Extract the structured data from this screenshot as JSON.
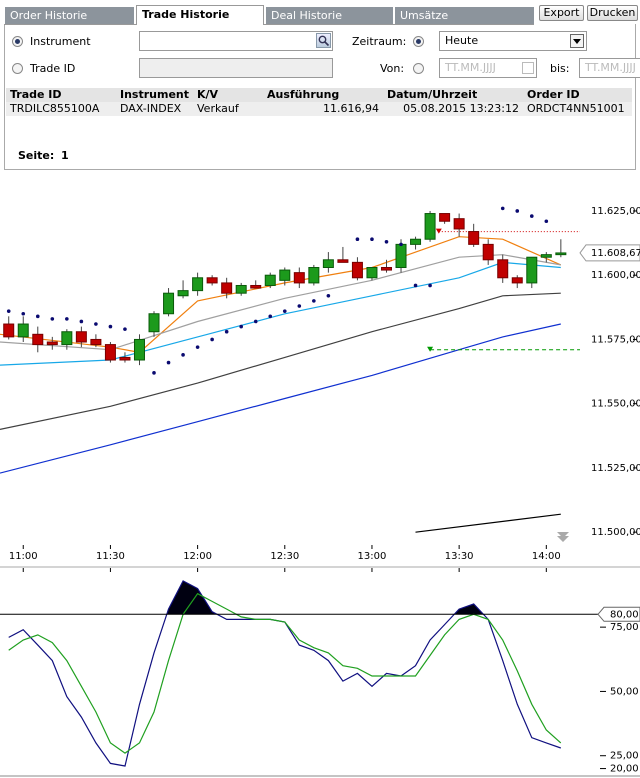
{
  "tabs": [
    "Order Historie",
    "Trade Historie",
    "Deal Historie",
    "Umsätze"
  ],
  "active_tab": 1,
  "buttons": [
    "Export",
    "Drucken"
  ],
  "form": {
    "instrument_label": "Instrument",
    "trade_id_label": "Trade ID",
    "zeitraum_label": "Zeitraum:",
    "zeitraum_value": "Heute",
    "von_label": "Von:",
    "von_placeholder": "TT.MM.JJJJ",
    "bis_label": "bis:",
    "bis_placeholder": "TT.MM.JJJJ"
  },
  "table": {
    "columns": [
      "Trade ID",
      "Instrument",
      "K/V",
      "Ausführung",
      "Datum/Uhrzeit",
      "Order ID"
    ],
    "rows": [
      [
        "TRDILC855100A",
        "DAX-INDEX",
        "Verkauf",
        "11.616,94",
        "05.08.2015 13:23:12",
        "ORDCT4NN51001"
      ]
    ]
  },
  "pagination": {
    "label": "Seite:",
    "page": 1
  },
  "chart_data": [
    {
      "type": "candlestick",
      "x": [
        "10:55",
        "11:00",
        "11:05",
        "11:10",
        "11:15",
        "11:20",
        "11:25",
        "11:30",
        "11:35",
        "11:40",
        "11:45",
        "11:50",
        "11:55",
        "12:00",
        "12:05",
        "12:10",
        "12:15",
        "12:20",
        "12:25",
        "12:30",
        "12:35",
        "12:40",
        "12:45",
        "12:50",
        "12:55",
        "13:00",
        "13:05",
        "13:10",
        "13:15",
        "13:20",
        "13:25",
        "13:30",
        "13:35",
        "13:40",
        "13:45",
        "13:50",
        "13:55",
        "14:00",
        "14:05"
      ],
      "open": [
        11581,
        11576,
        11577,
        11574,
        11573,
        11578,
        11575,
        11573,
        11568,
        11567,
        11578,
        11585,
        11592,
        11594,
        11599,
        11597,
        11593,
        11596,
        11596,
        11598,
        11601,
        11597,
        11603,
        11606,
        11605,
        11599,
        11603,
        11603,
        11612,
        11614,
        11624,
        11622,
        11617,
        11612,
        11606,
        11599,
        11597,
        11607,
        11608
      ],
      "high": [
        11584,
        11584,
        11580,
        11576,
        11579,
        11580,
        11577,
        11574,
        11570,
        11577,
        11586,
        11595,
        11598,
        11601,
        11600,
        11599,
        11597,
        11598,
        11601,
        11603,
        11603,
        11604,
        11609,
        11611,
        11607,
        11603,
        11606,
        11614,
        11615,
        11625,
        11624,
        11624,
        11620,
        11614,
        11608,
        11600,
        11607,
        11609,
        11614
      ],
      "low": [
        11575,
        11574,
        11570,
        11571,
        11571,
        11572,
        11572,
        11566,
        11566,
        11565,
        11576,
        11584,
        11591,
        11592,
        11596,
        11591,
        11592,
        11595,
        11595,
        11596,
        11595,
        11596,
        11601,
        11605,
        11598,
        11598,
        11601,
        11601,
        11610,
        11613,
        11620,
        11615,
        11611,
        11604,
        11597,
        11595,
        11595,
        11605,
        11607
      ],
      "close": [
        11576,
        11581,
        11573,
        11573,
        11578,
        11574,
        11573,
        11567,
        11567,
        11575,
        11585,
        11593,
        11594,
        11599,
        11597,
        11593,
        11596,
        11595,
        11600,
        11602,
        11597,
        11603,
        11606,
        11605,
        11599,
        11603,
        11602,
        11612,
        11614,
        11624,
        11621,
        11618,
        11612,
        11606,
        11599,
        11597,
        11607,
        11608,
        11608.67
      ],
      "up_color": "#1c9a1c",
      "down_color": "#c00000",
      "xlim": [
        "10:52",
        "14:14"
      ],
      "xticks": [
        "11:00",
        "11:30",
        "12:00",
        "12:30",
        "13:00",
        "13:30",
        "14:00"
      ],
      "ylim": [
        11495,
        11639
      ],
      "yticks": [
        {
          "value": 11500,
          "label": "11.500,00"
        },
        {
          "value": 11525,
          "label": "11.525,00"
        },
        {
          "value": 11550,
          "label": "11.550,00"
        },
        {
          "value": 11575,
          "label": "11.575,00"
        },
        {
          "value": 11600,
          "label": "11.600,00"
        },
        {
          "value": 11625,
          "label": "11.625,00"
        }
      ],
      "last": {
        "value": 11608.67,
        "label": "11.608,67"
      },
      "overlays": [
        {
          "color": "#f08010",
          "x": [
            "10:52",
            "11:30",
            "11:40",
            "12:00",
            "12:30",
            "13:00",
            "13:30",
            "13:45",
            "14:05"
          ],
          "values": [
            11577,
            11572,
            11570,
            11590,
            11597,
            11603,
            11615,
            11614,
            11604
          ]
        },
        {
          "color": "#a0a0a0",
          "x": [
            "10:52",
            "11:30",
            "12:00",
            "12:30",
            "13:00",
            "13:30",
            "13:45",
            "14:05"
          ],
          "values": [
            11574,
            11571,
            11582,
            11591,
            11598,
            11607,
            11608,
            11604
          ]
        },
        {
          "color": "#18a8e8",
          "x": [
            "10:52",
            "11:30",
            "12:00",
            "12:30",
            "13:00",
            "13:30",
            "13:45",
            "14:05"
          ],
          "values": [
            11565,
            11567,
            11576,
            11585,
            11592,
            11599,
            11605,
            11603
          ]
        },
        {
          "color": "#404040",
          "x": [
            "10:52",
            "11:30",
            "12:00",
            "12:30",
            "13:00",
            "13:30",
            "13:45",
            "14:05"
          ],
          "values": [
            11540,
            11549,
            11558,
            11568,
            11578,
            11587,
            11592,
            11593
          ]
        },
        {
          "color": "#1030d0",
          "x": [
            "10:52",
            "11:30",
            "12:00",
            "12:30",
            "13:00",
            "13:30",
            "13:45",
            "14:05"
          ],
          "values": [
            11523,
            11534,
            11543,
            11552,
            11561,
            11571,
            11576,
            11581
          ]
        },
        {
          "color": "#000000",
          "x": [
            "13:15",
            "14:05"
          ],
          "values": [
            11500,
            11507
          ]
        }
      ],
      "dots": {
        "color": "#0a0a70",
        "x": [
          "10:55",
          "11:00",
          "11:05",
          "11:10",
          "11:15",
          "11:20",
          "11:25",
          "11:30",
          "11:35",
          "11:45",
          "11:50",
          "11:55",
          "12:00",
          "12:05",
          "12:10",
          "12:15",
          "12:20",
          "12:25",
          "12:30",
          "12:35",
          "12:40",
          "12:45",
          "12:55",
          "13:00",
          "13:05",
          "13:10",
          "13:15",
          "13:20",
          "13:45",
          "13:50",
          "13:55",
          "14:00"
        ],
        "values": [
          11586,
          11585,
          11584,
          11583,
          11583,
          11582,
          11581,
          11580,
          11579,
          11562,
          11566,
          11569,
          11572,
          11575,
          11578,
          11580,
          11582,
          11584,
          11586,
          11588,
          11590,
          11592,
          11614,
          11614,
          11613,
          11612,
          11596,
          11596,
          11626,
          11625,
          11623,
          11621
        ]
      },
      "levels": [
        {
          "x": "13:23",
          "value": 11616.94,
          "color": "#d00000"
        },
        {
          "x": "13:20",
          "value": 11571,
          "color": "#009900"
        }
      ]
    },
    {
      "type": "line",
      "x": [
        "10:55",
        "11:00",
        "11:05",
        "11:10",
        "11:15",
        "11:20",
        "11:25",
        "11:30",
        "11:35",
        "11:40",
        "11:45",
        "11:50",
        "11:55",
        "12:00",
        "12:05",
        "12:10",
        "12:15",
        "12:20",
        "12:25",
        "12:30",
        "12:35",
        "12:40",
        "12:45",
        "12:50",
        "12:55",
        "13:00",
        "13:05",
        "13:10",
        "13:15",
        "13:20",
        "13:25",
        "13:30",
        "13:35",
        "13:40",
        "13:45",
        "13:50",
        "13:55",
        "14:00",
        "14:05"
      ],
      "series": [
        {
          "color": "#101080",
          "values": [
            71,
            74,
            68,
            62,
            48,
            40,
            30,
            22,
            21,
            45,
            65,
            82,
            93,
            90,
            81,
            78,
            78,
            78,
            78,
            77,
            68,
            66,
            62,
            54,
            57,
            52,
            57,
            56,
            60,
            70,
            76,
            82,
            84,
            78,
            62,
            45,
            32,
            30,
            28
          ]
        },
        {
          "color": "#20a020",
          "values": [
            66,
            70,
            72,
            69,
            62,
            52,
            42,
            30,
            26,
            30,
            42,
            62,
            80,
            88,
            85,
            82,
            79,
            78,
            78,
            77,
            70,
            67,
            65,
            60,
            59,
            56,
            56,
            56,
            56,
            64,
            72,
            78,
            80,
            78,
            70,
            58,
            45,
            35,
            30
          ]
        }
      ],
      "xlim": [
        "10:52",
        "14:14"
      ],
      "ylim": [
        17.5,
        98
      ],
      "yticks": [
        {
          "value": 20,
          "label": "20,00"
        },
        {
          "value": 25,
          "label": "25,00"
        },
        {
          "value": 50,
          "label": "50,00"
        },
        {
          "value": 75,
          "label": "75,00"
        }
      ],
      "level": {
        "value": 80,
        "label": "80,00"
      }
    }
  ]
}
